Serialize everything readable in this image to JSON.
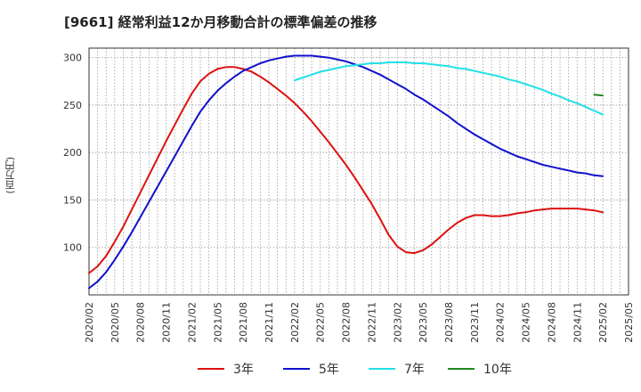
{
  "chart_data": {
    "type": "line",
    "title": "[9661]  経常利益12か月移動合計の標準偏差の推移",
    "ylabel": "(百万円)",
    "xlabel": "",
    "ylim": [
      50,
      310
    ],
    "yticks": [
      100,
      150,
      200,
      250,
      300
    ],
    "xlim": [
      "2020-02",
      "2025-05"
    ],
    "xticks": [
      "2020/02",
      "2020/05",
      "2020/08",
      "2020/11",
      "2021/02",
      "2021/05",
      "2021/08",
      "2021/11",
      "2022/02",
      "2022/05",
      "2022/08",
      "2022/11",
      "2023/02",
      "2023/05",
      "2023/08",
      "2023/11",
      "2024/02",
      "2024/05",
      "2024/08",
      "2024/11",
      "2025/02",
      "2025/05"
    ],
    "grid": true,
    "legend_position": "bottom",
    "series": [
      {
        "name": "3年",
        "color": "#dd1111",
        "x": [
          "2020-02",
          "2020-03",
          "2020-04",
          "2020-05",
          "2020-06",
          "2020-07",
          "2020-08",
          "2020-09",
          "2020-10",
          "2020-11",
          "2020-12",
          "2021-01",
          "2021-02",
          "2021-03",
          "2021-04",
          "2021-05",
          "2021-06",
          "2021-07",
          "2021-08",
          "2021-09",
          "2021-10",
          "2021-11",
          "2021-12",
          "2022-01",
          "2022-02",
          "2022-03",
          "2022-04",
          "2022-05",
          "2022-06",
          "2022-07",
          "2022-08",
          "2022-09",
          "2022-10",
          "2022-11",
          "2022-12",
          "2023-01",
          "2023-02",
          "2023-03",
          "2023-04",
          "2023-05",
          "2023-06",
          "2023-07",
          "2023-08",
          "2023-09",
          "2023-10",
          "2023-11",
          "2023-12",
          "2024-01",
          "2024-02",
          "2024-03",
          "2024-04",
          "2024-05",
          "2024-06",
          "2024-07",
          "2024-08",
          "2024-09",
          "2024-10",
          "2024-11",
          "2024-12",
          "2025-01",
          "2025-02"
        ],
        "values": [
          73,
          80,
          91,
          106,
          122,
          140,
          158,
          176,
          194,
          212,
          229,
          246,
          262,
          275,
          283,
          288,
          290,
          290,
          288,
          285,
          280,
          274,
          267,
          260,
          252,
          243,
          233,
          222,
          211,
          199,
          187,
          174,
          160,
          146,
          130,
          113,
          101,
          95,
          94,
          97,
          103,
          111,
          119,
          126,
          131,
          134,
          134,
          133,
          133,
          134,
          136,
          137,
          139,
          140,
          141,
          141,
          141,
          141,
          140,
          139,
          137
        ]
      },
      {
        "name": "5年",
        "color": "#1111cc",
        "x": [
          "2020-02",
          "2020-03",
          "2020-04",
          "2020-05",
          "2020-06",
          "2020-07",
          "2020-08",
          "2020-09",
          "2020-10",
          "2020-11",
          "2020-12",
          "2021-01",
          "2021-02",
          "2021-03",
          "2021-04",
          "2021-05",
          "2021-06",
          "2021-07",
          "2021-08",
          "2021-09",
          "2021-10",
          "2021-11",
          "2021-12",
          "2022-01",
          "2022-02",
          "2022-03",
          "2022-04",
          "2022-05",
          "2022-06",
          "2022-07",
          "2022-08",
          "2022-09",
          "2022-10",
          "2022-11",
          "2022-12",
          "2023-01",
          "2023-02",
          "2023-03",
          "2023-04",
          "2023-05",
          "2023-06",
          "2023-07",
          "2023-08",
          "2023-09",
          "2023-10",
          "2023-11",
          "2023-12",
          "2024-01",
          "2024-02",
          "2024-03",
          "2024-04",
          "2024-05",
          "2024-06",
          "2024-07",
          "2024-08",
          "2024-09",
          "2024-10",
          "2024-11",
          "2024-12",
          "2025-01",
          "2025-02"
        ],
        "values": [
          57,
          64,
          74,
          87,
          101,
          116,
          132,
          148,
          164,
          180,
          196,
          212,
          228,
          243,
          255,
          265,
          273,
          280,
          286,
          290,
          294,
          297,
          299,
          301,
          302,
          302,
          302,
          301,
          300,
          298,
          296,
          293,
          290,
          286,
          282,
          277,
          272,
          267,
          261,
          256,
          250,
          244,
          238,
          231,
          225,
          219,
          214,
          209,
          204,
          200,
          196,
          193,
          190,
          187,
          185,
          183,
          181,
          179,
          178,
          176,
          175
        ]
      },
      {
        "name": "7年",
        "color": "#22e0e8",
        "x": [
          "2022-02",
          "2022-03",
          "2022-04",
          "2022-05",
          "2022-06",
          "2022-07",
          "2022-08",
          "2022-09",
          "2022-10",
          "2022-11",
          "2022-12",
          "2023-01",
          "2023-02",
          "2023-03",
          "2023-04",
          "2023-05",
          "2023-06",
          "2023-07",
          "2023-08",
          "2023-09",
          "2023-10",
          "2023-11",
          "2023-12",
          "2024-01",
          "2024-02",
          "2024-03",
          "2024-04",
          "2024-05",
          "2024-06",
          "2024-07",
          "2024-08",
          "2024-09",
          "2024-10",
          "2024-11",
          "2024-12",
          "2025-01",
          "2025-02"
        ],
        "values": [
          276,
          279,
          282,
          285,
          287,
          289,
          291,
          292,
          293,
          294,
          294,
          295,
          295,
          295,
          294,
          294,
          293,
          292,
          291,
          289,
          288,
          286,
          284,
          282,
          280,
          277,
          275,
          272,
          269,
          266,
          262,
          259,
          255,
          252,
          248,
          244,
          240
        ]
      },
      {
        "name": "10年",
        "color": "#228822",
        "x": [
          "2025-01",
          "2025-02"
        ],
        "values": [
          261,
          260
        ]
      }
    ]
  }
}
